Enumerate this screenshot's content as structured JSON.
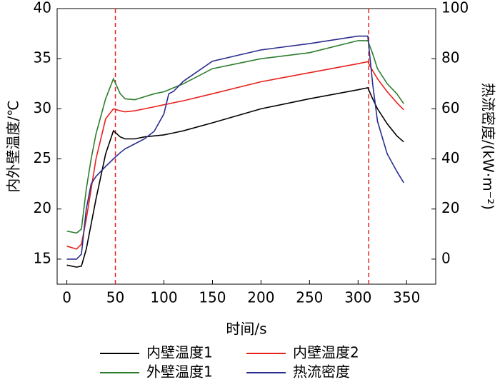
{
  "chart_data": {
    "type": "line",
    "xlabel": "时间/s",
    "ylabel": "内外壁温度/℃",
    "y2label": "热流密度/(kW·m⁻²)",
    "x": [
      0,
      10,
      15,
      20,
      25,
      30,
      40,
      48,
      55,
      60,
      70,
      80,
      90,
      100,
      105,
      110,
      120,
      150,
      200,
      250,
      300,
      310,
      315,
      320,
      330,
      340,
      347
    ],
    "series": [
      {
        "name": "内壁温度1",
        "color": "#000000",
        "values": [
          14.4,
          14.2,
          14.3,
          16,
          18.5,
          21,
          25.5,
          27.8,
          27.2,
          27,
          27,
          27.2,
          27.3,
          27.4,
          27.5,
          27.6,
          27.8,
          28.6,
          30,
          31,
          31.9,
          32.1,
          31,
          30,
          28.5,
          27.3,
          26.7
        ]
      },
      {
        "name": "内壁温度2",
        "color": "#e8211d",
        "values": [
          16.3,
          16,
          16.5,
          19,
          22,
          25,
          29,
          30,
          29.8,
          29.7,
          29.8,
          30,
          30.2,
          30.4,
          30.5,
          30.6,
          30.8,
          31.5,
          32.7,
          33.6,
          34.5,
          34.7,
          33.8,
          33,
          31.7,
          30.6,
          29.9
        ]
      },
      {
        "name": "外壁温度1",
        "color": "#2e7d2e",
        "values": [
          17.8,
          17.6,
          18,
          22,
          25,
          27.5,
          31,
          33,
          31.5,
          31,
          30.9,
          31.2,
          31.5,
          31.7,
          31.9,
          32.1,
          32.5,
          34,
          35,
          35.6,
          36.8,
          36.8,
          35.5,
          34,
          32.5,
          31.5,
          30.5
        ]
      },
      {
        "name": "热流密度",
        "color": "#2b2d8e",
        "axis": "y2",
        "values": [
          0,
          0,
          2,
          20,
          30,
          33,
          37,
          40,
          42.5,
          44,
          46,
          48,
          51,
          58,
          66,
          67,
          71,
          79,
          83.5,
          86,
          89,
          89,
          70,
          55,
          42,
          35,
          30.5
        ]
      }
    ],
    "vlines": [
      50,
      311
    ],
    "vline_color": "#e8211d",
    "xlim": [
      -10,
      380
    ],
    "xticks": [
      0,
      50,
      100,
      150,
      200,
      250,
      300,
      350
    ],
    "ylim": [
      12.5,
      40
    ],
    "yticks": [
      15,
      20,
      25,
      30,
      35,
      40
    ],
    "y2lim": [
      -10,
      100
    ],
    "y2ticks": [
      0,
      20,
      40,
      60,
      80,
      100
    ]
  }
}
